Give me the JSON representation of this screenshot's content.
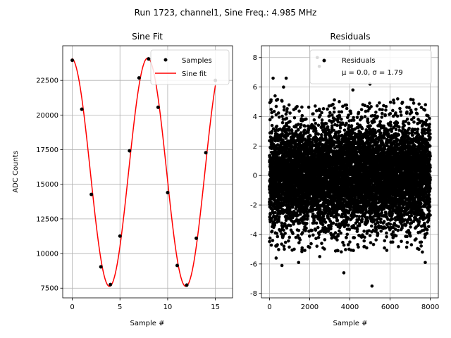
{
  "suptitle": "Run 1723, channel1, Sine Freq.: 4.985 MHz",
  "chart_data": [
    {
      "type": "scatter",
      "title": "Sine Fit",
      "xlabel": "Sample #",
      "ylabel": "ADC Counts",
      "xlim": [
        -1.0,
        16.8
      ],
      "ylim": [
        6800,
        25000
      ],
      "xticks": [
        0,
        5,
        10,
        15
      ],
      "yticks": [
        7500,
        10000,
        12500,
        15000,
        17500,
        20000,
        22500
      ],
      "grid": true,
      "legend_position": "upper right",
      "series": [
        {
          "name": "Samples",
          "kind": "points",
          "color": "#000000",
          "x": [
            0,
            1,
            2,
            3,
            4,
            5,
            6,
            7,
            8,
            9,
            10,
            11,
            12,
            13,
            14,
            15
          ],
          "y": [
            23950,
            20420,
            14270,
            9040,
            7760,
            11260,
            17420,
            22680,
            24050,
            20560,
            14400,
            9140,
            7720,
            11100,
            17280,
            22500
          ]
        },
        {
          "name": "Sine fit",
          "kind": "line",
          "color": "#ff0000",
          "offset": 15870,
          "amplitude": 8240,
          "period": 8.0,
          "phase_sample": -0.1
        }
      ]
    },
    {
      "type": "scatter",
      "title": "Residuals",
      "xlabel": "Sample #",
      "ylabel": "",
      "xlim": [
        -400,
        8400
      ],
      "ylim": [
        -8.3,
        8.8
      ],
      "xticks": [
        0,
        2000,
        4000,
        6000,
        8000
      ],
      "yticks": [
        -8,
        -6,
        -4,
        -2,
        0,
        2,
        4,
        6,
        8
      ],
      "grid": true,
      "legend_position": "upper right",
      "series": [
        {
          "name": "Residuals",
          "label_line2": "μ = 0.0, σ = 1.79",
          "kind": "points",
          "color": "#000000",
          "n_points": 8000,
          "mean": 0.0,
          "std": 1.79,
          "outliers": [
            [
              180,
              6.6
            ],
            [
              280,
              5.4
            ],
            [
              700,
              6.0
            ],
            [
              830,
              6.6
            ],
            [
              2380,
              8.0
            ],
            [
              2480,
              7.4
            ],
            [
              620,
              -6.1
            ],
            [
              1450,
              -5.9
            ],
            [
              3700,
              -6.6
            ],
            [
              3960,
              -5.0
            ],
            [
              5100,
              -7.5
            ],
            [
              5000,
              6.2
            ],
            [
              7750,
              -5.9
            ],
            [
              4150,
              5.8
            ],
            [
              330,
              -5.6
            ],
            [
              2500,
              -5.5
            ]
          ]
        }
      ]
    }
  ]
}
